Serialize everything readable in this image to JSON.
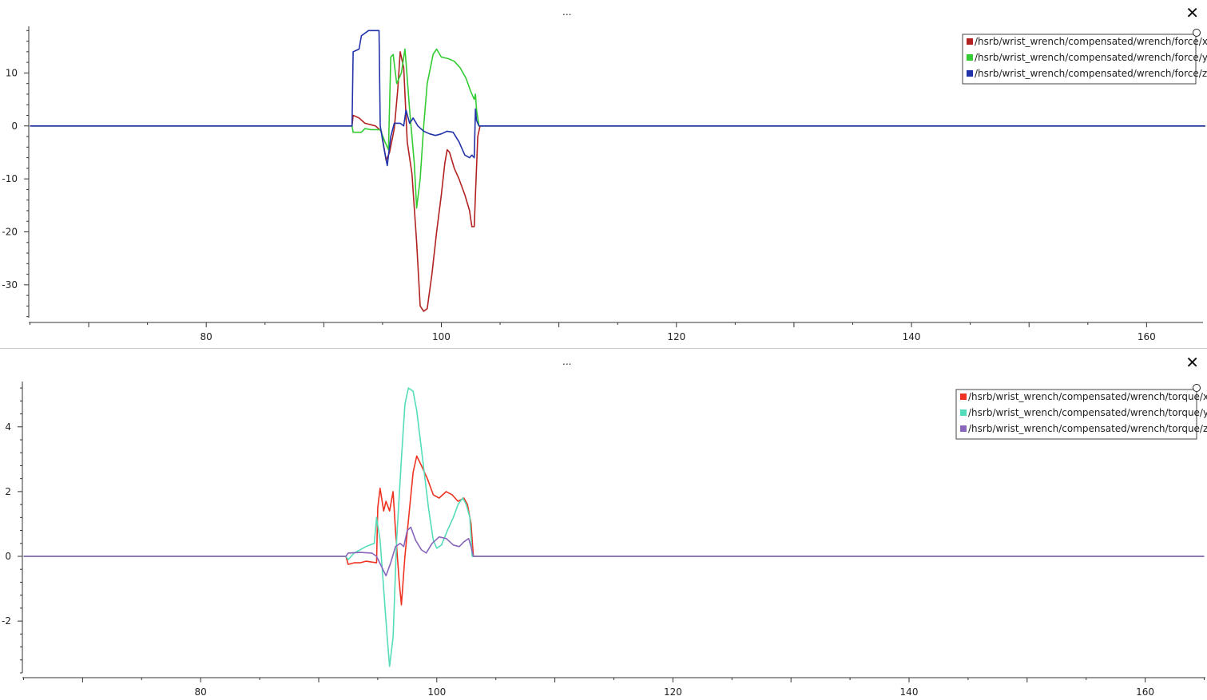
{
  "panels": [
    {
      "menu_label": "...",
      "close_label": "✕",
      "icons": {
        "menu": "more-icon",
        "close": "close-icon"
      }
    },
    {
      "menu_label": "...",
      "close_label": "✕",
      "icons": {
        "menu": "more-icon",
        "close": "close-icon"
      }
    }
  ],
  "chart_data": [
    {
      "type": "line",
      "title": "",
      "xlabel": "",
      "ylabel": "",
      "xlim": [
        64.9,
        164.8
      ],
      "ylim": [
        -36.2,
        18.8
      ],
      "xticks": [
        80,
        100,
        120,
        140,
        160
      ],
      "yticks": [
        10,
        0,
        -10,
        -20,
        -30
      ],
      "grid": false,
      "legend": "top-right",
      "series": [
        {
          "name": "/hsrb/wrist_wrench/compensated/wrench/force/x",
          "color": "#b22222",
          "points": [
            [
              65,
              0
            ],
            [
              92.4,
              0
            ],
            [
              92.5,
              2
            ],
            [
              93.0,
              1.5
            ],
            [
              93.5,
              0.5
            ],
            [
              94.4,
              0
            ],
            [
              94.9,
              -1
            ],
            [
              95.3,
              -6.5
            ],
            [
              95.6,
              -5
            ],
            [
              96.0,
              -0.5
            ],
            [
              96.3,
              7
            ],
            [
              96.5,
              14
            ],
            [
              96.8,
              11
            ],
            [
              97.1,
              -3
            ],
            [
              97.5,
              -9
            ],
            [
              97.9,
              -22
            ],
            [
              98.2,
              -34
            ],
            [
              98.5,
              -35
            ],
            [
              98.8,
              -34.5
            ],
            [
              99.2,
              -28
            ],
            [
              99.6,
              -20
            ],
            [
              100.0,
              -13
            ],
            [
              100.3,
              -7
            ],
            [
              100.5,
              -4.5
            ],
            [
              100.7,
              -5
            ],
            [
              101.1,
              -8
            ],
            [
              101.5,
              -10
            ],
            [
              102.0,
              -13
            ],
            [
              102.4,
              -16
            ],
            [
              102.6,
              -19
            ],
            [
              102.8,
              -19
            ],
            [
              102.9,
              -13
            ],
            [
              103.1,
              -2
            ],
            [
              103.3,
              0
            ],
            [
              165,
              0
            ]
          ]
        },
        {
          "name": "/hsrb/wrist_wrench/compensated/wrench/force/y",
          "color": "#33cc33",
          "points": [
            [
              65,
              0
            ],
            [
              92.4,
              0
            ],
            [
              92.5,
              -1.2
            ],
            [
              93.2,
              -1.2
            ],
            [
              93.5,
              -0.5
            ],
            [
              94.0,
              -0.7
            ],
            [
              94.8,
              -0.7
            ],
            [
              95.2,
              -3
            ],
            [
              95.5,
              -4.5
            ],
            [
              95.7,
              13
            ],
            [
              95.9,
              13.5
            ],
            [
              96.2,
              8
            ],
            [
              96.6,
              10
            ],
            [
              96.9,
              14.5
            ],
            [
              97.0,
              12
            ],
            [
              97.3,
              3
            ],
            [
              97.7,
              -7
            ],
            [
              97.9,
              -15.5
            ],
            [
              98.2,
              -10
            ],
            [
              98.5,
              0
            ],
            [
              98.8,
              8
            ],
            [
              99.3,
              13.5
            ],
            [
              99.6,
              14.5
            ],
            [
              100.0,
              13
            ],
            [
              100.6,
              12.7
            ],
            [
              101.1,
              12.2
            ],
            [
              101.6,
              11
            ],
            [
              102.1,
              9
            ],
            [
              102.5,
              6.5
            ],
            [
              102.8,
              5
            ],
            [
              102.9,
              6
            ],
            [
              103.0,
              3
            ],
            [
              103.2,
              0
            ],
            [
              165,
              0
            ]
          ]
        },
        {
          "name": "/hsrb/wrist_wrench/compensated/wrench/force/z",
          "color": "#2233aa",
          "points": [
            [
              65,
              0
            ],
            [
              92.4,
              0
            ],
            [
              92.5,
              14
            ],
            [
              93.0,
              14.5
            ],
            [
              93.2,
              17
            ],
            [
              93.8,
              18
            ],
            [
              94.7,
              18
            ],
            [
              94.8,
              0
            ],
            [
              95.1,
              -4
            ],
            [
              95.4,
              -7.5
            ],
            [
              95.7,
              -2
            ],
            [
              96.0,
              0.5
            ],
            [
              96.5,
              0.5
            ],
            [
              96.8,
              0
            ],
            [
              97.0,
              3
            ],
            [
              97.3,
              0.5
            ],
            [
              97.6,
              1.5
            ],
            [
              98.0,
              0
            ],
            [
              98.5,
              -1
            ],
            [
              99.0,
              -1.5
            ],
            [
              99.5,
              -1.8
            ],
            [
              100.0,
              -1.5
            ],
            [
              100.5,
              -1
            ],
            [
              101.0,
              -1.2
            ],
            [
              101.5,
              -3
            ],
            [
              102.0,
              -5.5
            ],
            [
              102.4,
              -6
            ],
            [
              102.6,
              -5.5
            ],
            [
              102.8,
              -6
            ],
            [
              102.9,
              3.2
            ],
            [
              103.0,
              1
            ],
            [
              103.2,
              0
            ],
            [
              165,
              0
            ]
          ]
        }
      ]
    },
    {
      "type": "line",
      "title": "",
      "xlabel": "",
      "ylabel": "",
      "xlim": [
        64.9,
        165.1
      ],
      "ylim": [
        -3.6,
        5.4
      ],
      "xticks": [
        80,
        100,
        120,
        140,
        160
      ],
      "yticks": [
        4,
        2,
        0,
        -2
      ],
      "grid": false,
      "legend": "top-right",
      "series": [
        {
          "name": "/hsrb/wrist_wrench/compensated/wrench/torque/x",
          "color": "#ee3322",
          "points": [
            [
              65,
              0
            ],
            [
              92.3,
              0
            ],
            [
              92.5,
              -0.25
            ],
            [
              93.0,
              -0.2
            ],
            [
              93.5,
              -0.2
            ],
            [
              94.0,
              -0.15
            ],
            [
              94.9,
              -0.2
            ],
            [
              95.0,
              1.5
            ],
            [
              95.2,
              2.1
            ],
            [
              95.5,
              1.4
            ],
            [
              95.7,
              1.7
            ],
            [
              96.0,
              1.4
            ],
            [
              96.3,
              2.0
            ],
            [
              96.5,
              0.8
            ],
            [
              96.8,
              -0.7
            ],
            [
              97.0,
              -1.5
            ],
            [
              97.3,
              0
            ],
            [
              97.7,
              1.5
            ],
            [
              98.0,
              2.6
            ],
            [
              98.3,
              3.1
            ],
            [
              98.7,
              2.8
            ],
            [
              99.2,
              2.4
            ],
            [
              99.7,
              1.9
            ],
            [
              100.2,
              1.8
            ],
            [
              100.8,
              2.0
            ],
            [
              101.3,
              1.9
            ],
            [
              101.8,
              1.7
            ],
            [
              102.3,
              1.8
            ],
            [
              102.6,
              1.6
            ],
            [
              102.9,
              1.0
            ],
            [
              103.1,
              0
            ],
            [
              165,
              0
            ]
          ]
        },
        {
          "name": "/hsrb/wrist_wrench/compensated/wrench/torque/y",
          "color": "#55ddbb",
          "points": [
            [
              65,
              0
            ],
            [
              92.3,
              0
            ],
            [
              92.5,
              -0.1
            ],
            [
              93.0,
              0.1
            ],
            [
              93.5,
              0.2
            ],
            [
              94.0,
              0.3
            ],
            [
              94.7,
              0.4
            ],
            [
              94.9,
              1.2
            ],
            [
              95.2,
              0.5
            ],
            [
              95.5,
              -1.0
            ],
            [
              95.8,
              -2.5
            ],
            [
              96.0,
              -3.4
            ],
            [
              96.3,
              -2.5
            ],
            [
              96.6,
              0.5
            ],
            [
              97.0,
              3.0
            ],
            [
              97.3,
              4.7
            ],
            [
              97.6,
              5.2
            ],
            [
              98.0,
              5.1
            ],
            [
              98.3,
              4.5
            ],
            [
              98.8,
              3.0
            ],
            [
              99.3,
              1.5
            ],
            [
              99.7,
              0.5
            ],
            [
              100.0,
              0.25
            ],
            [
              100.4,
              0.35
            ],
            [
              100.9,
              0.8
            ],
            [
              101.4,
              1.2
            ],
            [
              101.8,
              1.6
            ],
            [
              102.2,
              1.8
            ],
            [
              102.5,
              1.6
            ],
            [
              102.8,
              1.2
            ],
            [
              103.0,
              0
            ],
            [
              165,
              0
            ]
          ]
        },
        {
          "name": "/hsrb/wrist_wrench/compensated/wrench/torque/z",
          "color": "#8866bb",
          "points": [
            [
              65,
              0
            ],
            [
              92.3,
              0
            ],
            [
              92.5,
              0.1
            ],
            [
              93.5,
              0.12
            ],
            [
              94.5,
              0.1
            ],
            [
              94.9,
              0.0
            ],
            [
              95.3,
              -0.3
            ],
            [
              95.7,
              -0.6
            ],
            [
              96.1,
              -0.2
            ],
            [
              96.5,
              0.3
            ],
            [
              96.9,
              0.4
            ],
            [
              97.2,
              0.3
            ],
            [
              97.5,
              0.8
            ],
            [
              97.8,
              0.9
            ],
            [
              98.2,
              0.5
            ],
            [
              98.7,
              0.2
            ],
            [
              99.1,
              0.1
            ],
            [
              99.6,
              0.4
            ],
            [
              100.2,
              0.6
            ],
            [
              100.8,
              0.55
            ],
            [
              101.4,
              0.35
            ],
            [
              101.9,
              0.3
            ],
            [
              102.3,
              0.45
            ],
            [
              102.7,
              0.55
            ],
            [
              102.9,
              0.3
            ],
            [
              103.1,
              0
            ],
            [
              165,
              0
            ]
          ]
        }
      ]
    }
  ]
}
